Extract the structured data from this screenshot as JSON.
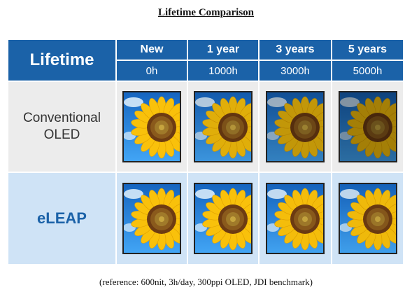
{
  "title": "Lifetime Comparison",
  "header": {
    "main_label": "Lifetime",
    "columns": [
      {
        "label": "New",
        "hours": "0h"
      },
      {
        "label": "1 year",
        "hours": "1000h"
      },
      {
        "label": "3 years",
        "hours": "3000h"
      },
      {
        "label": "5 years",
        "hours": "5000h"
      }
    ]
  },
  "rows": [
    {
      "label_line1": "Conventional",
      "label_line2": "OLED"
    },
    {
      "label_line1": "eLEAP",
      "label_line2": ""
    }
  ],
  "image_icon": "sunflower-photo",
  "colors": {
    "header_blue": "#1b62a8",
    "conventional_row_bg": "#ececec",
    "eleap_row_bg": "#cfe3f6"
  },
  "reference": "(reference: 600nit, 3h/day, 300ppi OLED, JDI benchmark)"
}
